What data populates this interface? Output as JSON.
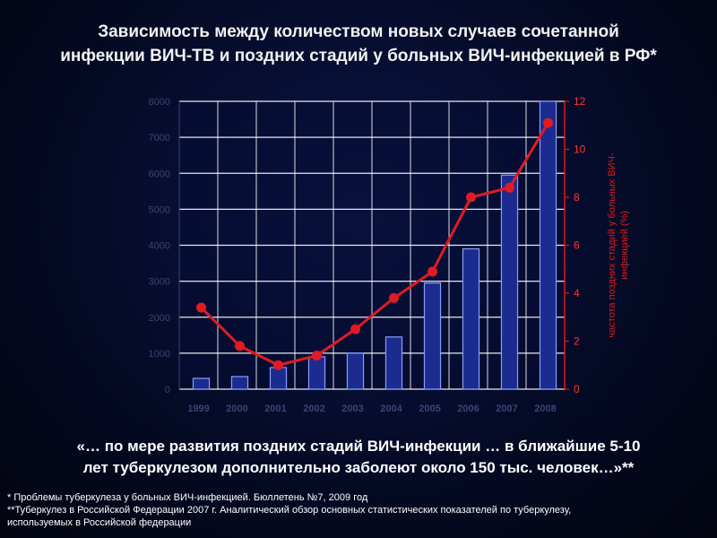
{
  "slide": {
    "title_lines": [
      "Зависимость между количеством новых случаев сочетанной",
      "инфекции ВИЧ-ТВ и поздних стадий у больных ВИЧ-инфекцией в РФ*"
    ],
    "quote_lines": [
      "«… по мере развития поздних стадий ВИЧ-инфекции … в ближайшие 5-10",
      "лет  туберкулезом дополнительно заболеют около 150 тыс. человек…»**"
    ],
    "footnotes": [
      "* Проблемы туберкулеза у больных ВИЧ-инфекцией. Бюллетень №7,  2009 год",
      "**Туберкулез в Российской Федерации 2007 г. Аналитический обзор основных статистических показателей по туберкулезу,",
      "используемых в Российской федерации"
    ]
  },
  "colors": {
    "bar_fill": "#1c2c8e",
    "bar_edge": "#8a9bff",
    "line": "#e01b22",
    "right_axis": "#e01818",
    "grid": "#ffffff"
  },
  "chart_data": {
    "type": "bar",
    "categories": [
      "1999",
      "2000",
      "2001",
      "2002",
      "2003",
      "2004",
      "2005",
      "2006",
      "2007",
      "2008"
    ],
    "bars": {
      "axis": "left",
      "values": [
        300,
        350,
        600,
        900,
        1000,
        1450,
        2950,
        3900,
        5950,
        8000
      ],
      "ylim": [
        0,
        8000
      ],
      "ticks": [
        0,
        1000,
        2000,
        3000,
        4000,
        5000,
        6000,
        7000,
        8000
      ],
      "tick_labels": [
        "0",
        "1000",
        "2000",
        "3000",
        "4000",
        "5000",
        "6000",
        "7000",
        "8000"
      ]
    },
    "line": {
      "axis": "right",
      "values": [
        3.4,
        1.8,
        1.0,
        1.4,
        2.5,
        3.8,
        4.9,
        8.0,
        8.4,
        11.1
      ],
      "ylim": [
        0,
        12
      ],
      "ticks": [
        0,
        2,
        4,
        6,
        8,
        10,
        12
      ],
      "tick_labels": [
        "0",
        "2",
        "4",
        "6",
        "8",
        "10",
        "12"
      ]
    },
    "y2label": "частота поздних стадий у больных ВИЧ-инфекцией (%)",
    "ylabel": "",
    "grid": true
  }
}
